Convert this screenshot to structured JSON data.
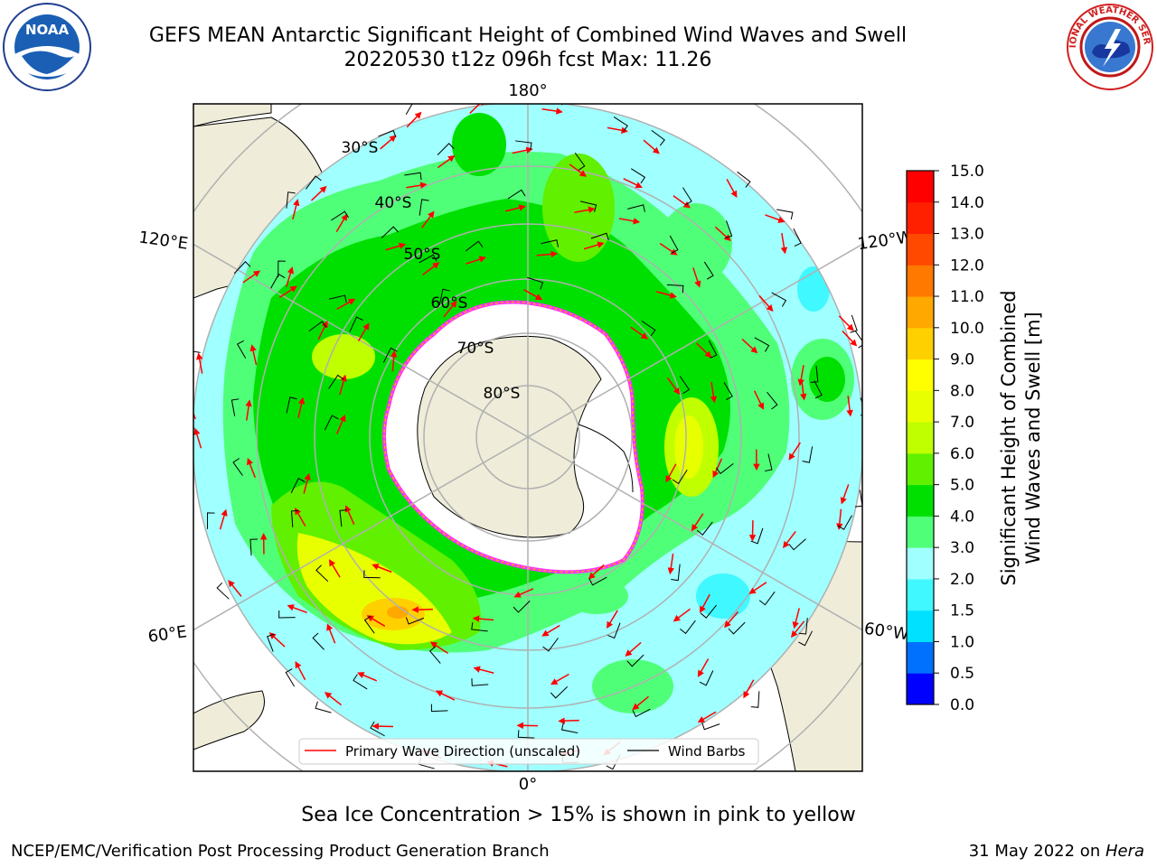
{
  "title_line1": "GEFS MEAN Antarctic Significant Height of Combined Wind Waves and Swell",
  "title_line2": "20220530 t12z 096h fcst   Max: 11.26",
  "lon_labels": [
    "180°",
    "120°E",
    "120°W",
    "60°E",
    "60°W",
    "0°"
  ],
  "lat_labels": [
    "30°S",
    "40°S",
    "50°S",
    "60°S",
    "70°S",
    "80°S"
  ],
  "legend": {
    "wave_label": "Primary Wave Direction (unscaled)",
    "wind_label": "Wind Barbs"
  },
  "colorbar": {
    "label_line1": "Significant Height of Combined",
    "label_line2": "Wind Waves and Swell [m]",
    "ticks": [
      "0.0",
      "0.5",
      "1.0",
      "1.5",
      "2.0",
      "3.0",
      "4.0",
      "5.0",
      "6.0",
      "7.0",
      "8.0",
      "9.0",
      "10.0",
      "11.0",
      "12.0",
      "13.0",
      "14.0",
      "15.0"
    ],
    "colors": [
      "#0000ff",
      "#0070ff",
      "#00e0ff",
      "#40f8ff",
      "#a0ffff",
      "#50ff78",
      "#00e000",
      "#60f000",
      "#c0ff00",
      "#e8ff00",
      "#ffff00",
      "#ffd000",
      "#ffa800",
      "#ff7800",
      "#ff4800",
      "#ff2000",
      "#ff0000"
    ]
  },
  "ice_note": "Sea Ice Concentration > 15% is shown in pink to yellow",
  "footer_left": "NCEP/EMC/Verification Post Processing Product Generation Branch",
  "footer_date": "31 May 2022 on ",
  "footer_host": "Hera",
  "logos": {
    "noaa_text": "NOAA",
    "nws_text": "NATIONAL WEATHER SERVICE"
  },
  "colors": {
    "land": "#efedd9",
    "ocean_base": "#a0ffff",
    "arrow": "#ff0000",
    "grid": "#b0b0b0"
  }
}
